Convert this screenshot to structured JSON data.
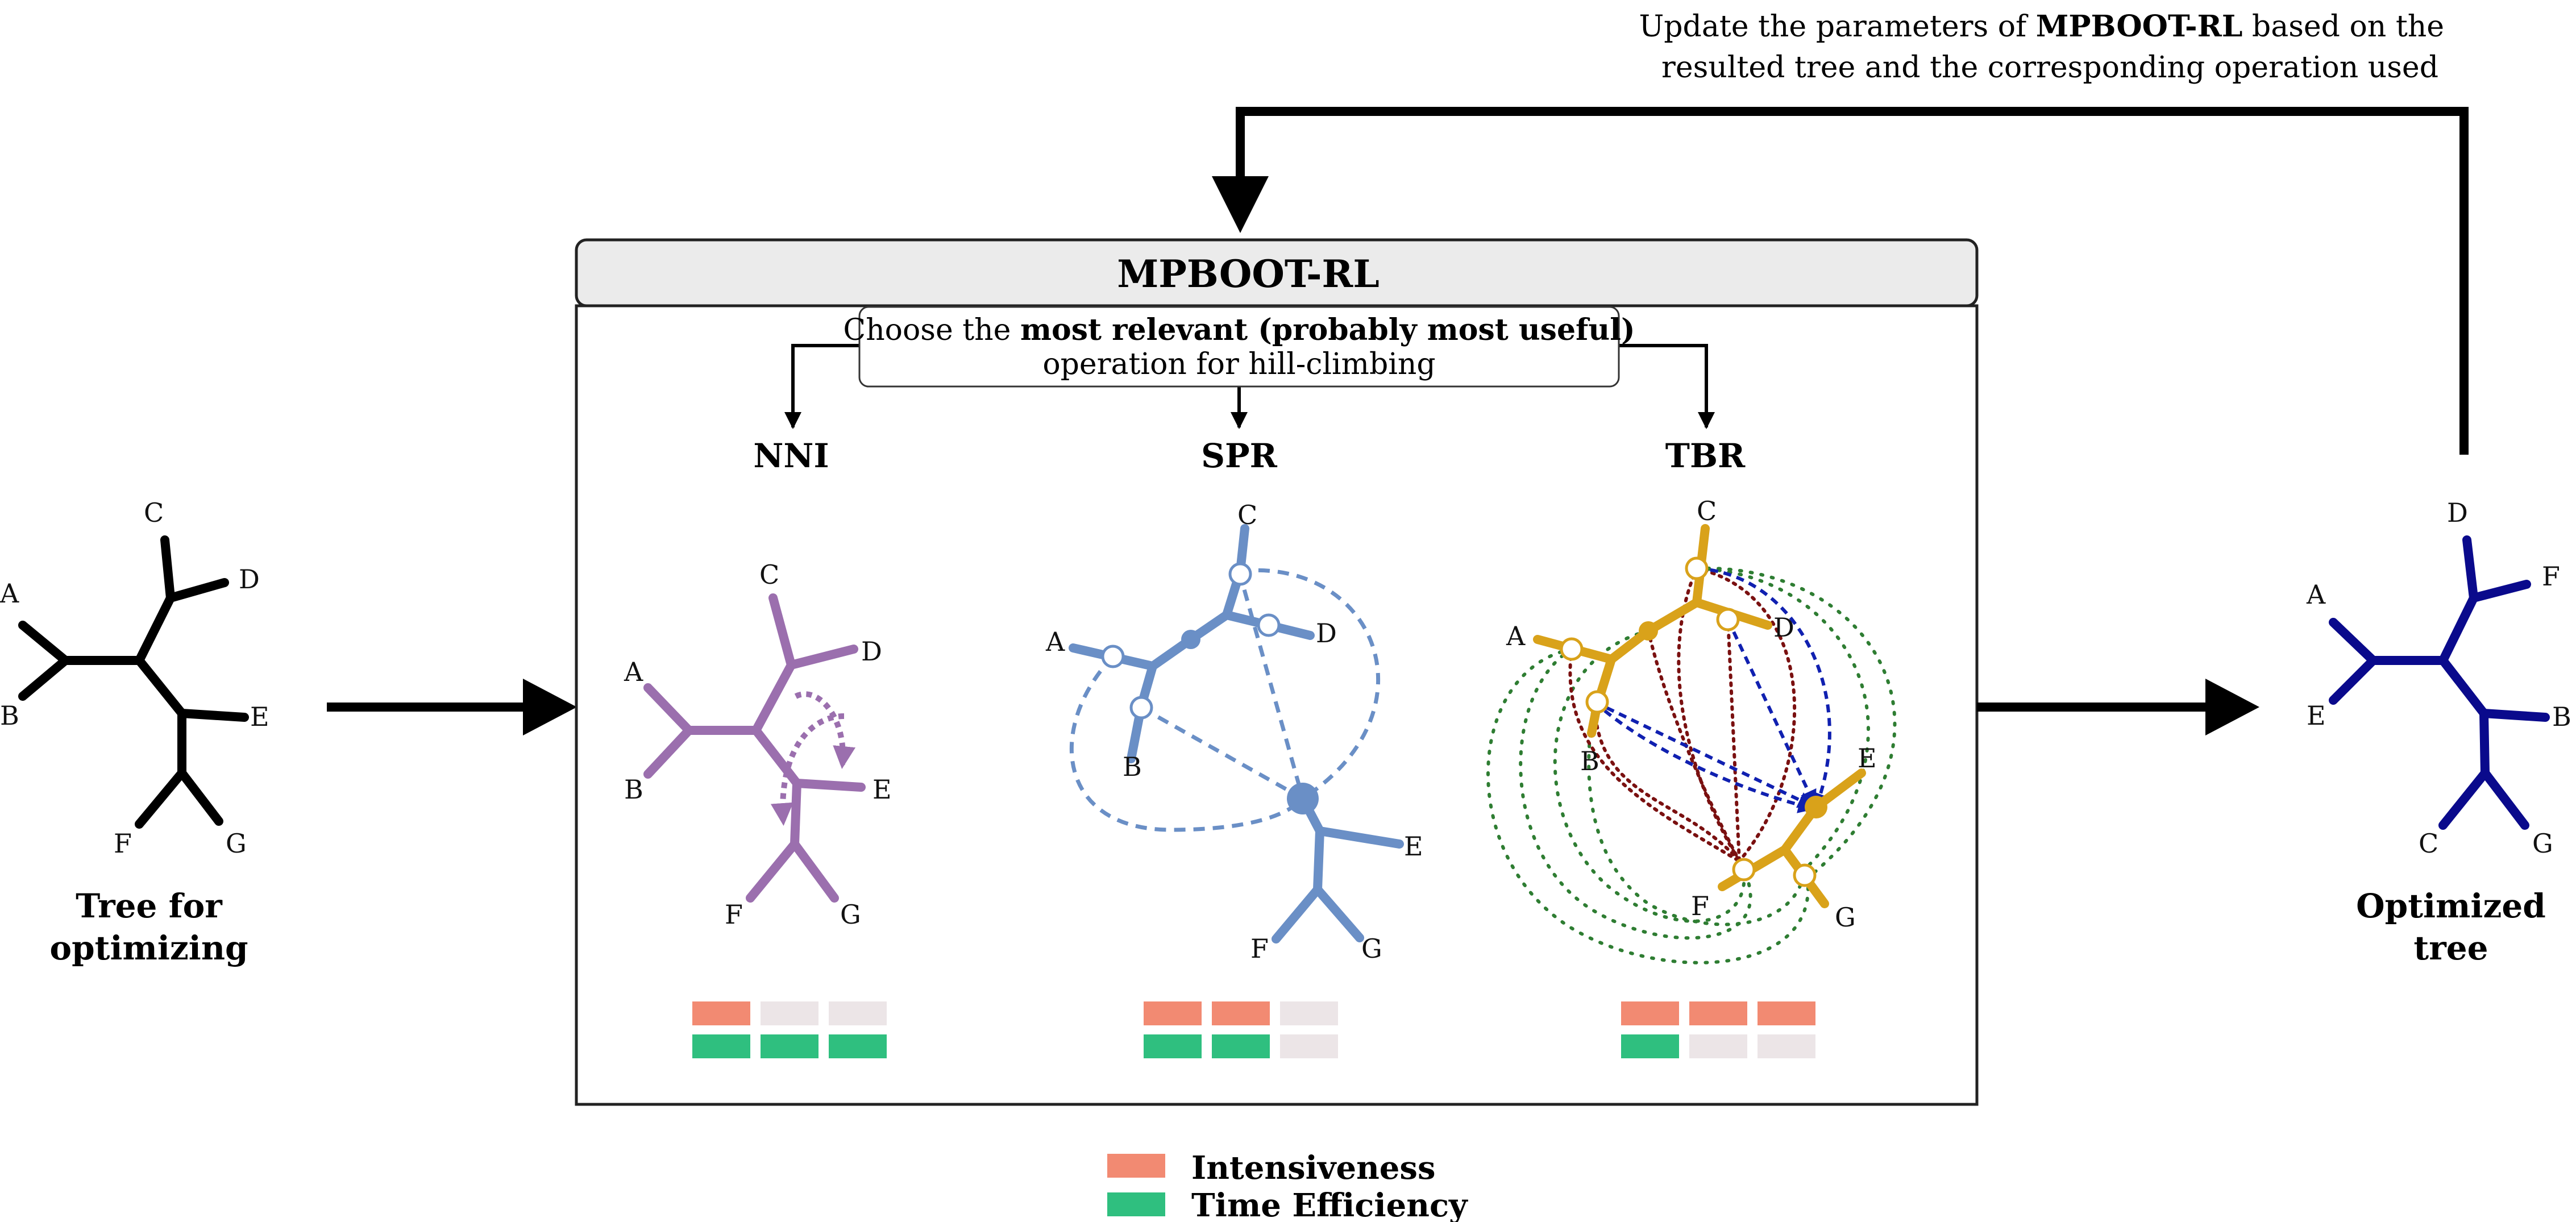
{
  "feedback": {
    "line1_pre": "Update the parameters of ",
    "line1_bold": "MPBOOT-RL",
    "line1_post": " based on the",
    "line2": "resulted tree and the corresponding operation used"
  },
  "module": {
    "title": "MPBOOT-RL"
  },
  "choose": {
    "line1_pre": "Choose the ",
    "line1_bold": "most relevant (probably most useful)",
    "line2": "operation for hill-climbing"
  },
  "input_tree": {
    "caption_line1": "Tree for",
    "caption_line2": "optimizing",
    "leaves": [
      "A",
      "B",
      "C",
      "D",
      "E",
      "F",
      "G"
    ],
    "color": "#000000"
  },
  "output_tree": {
    "caption_line1": "Optimized",
    "caption_line2": "tree",
    "leaves": [
      "A",
      "E",
      "D",
      "F",
      "B",
      "C",
      "G"
    ],
    "color": "#0a0a8c"
  },
  "operations": [
    {
      "name": "NNI",
      "color": "#9b6fae",
      "leaves": [
        "A",
        "B",
        "C",
        "D",
        "E",
        "F",
        "G"
      ],
      "intensiveness": 1,
      "time_efficiency": 3
    },
    {
      "name": "SPR",
      "color": "#6a8fc6",
      "leaves": [
        "A",
        "B",
        "C",
        "D",
        "E",
        "F",
        "G"
      ],
      "intensiveness": 2,
      "time_efficiency": 2
    },
    {
      "name": "TBR",
      "color": "#d9a21a",
      "leaves": [
        "A",
        "B",
        "C",
        "D",
        "E",
        "F",
        "G"
      ],
      "intensiveness": 3,
      "time_efficiency": 1
    }
  ],
  "rating_max": 3,
  "legend": {
    "items": [
      {
        "label": "Intensiveness",
        "color": "#f28a72"
      },
      {
        "label": "Time Efficiency",
        "color": "#2fbf7f"
      }
    ],
    "empty_color": "#ece5e7"
  }
}
